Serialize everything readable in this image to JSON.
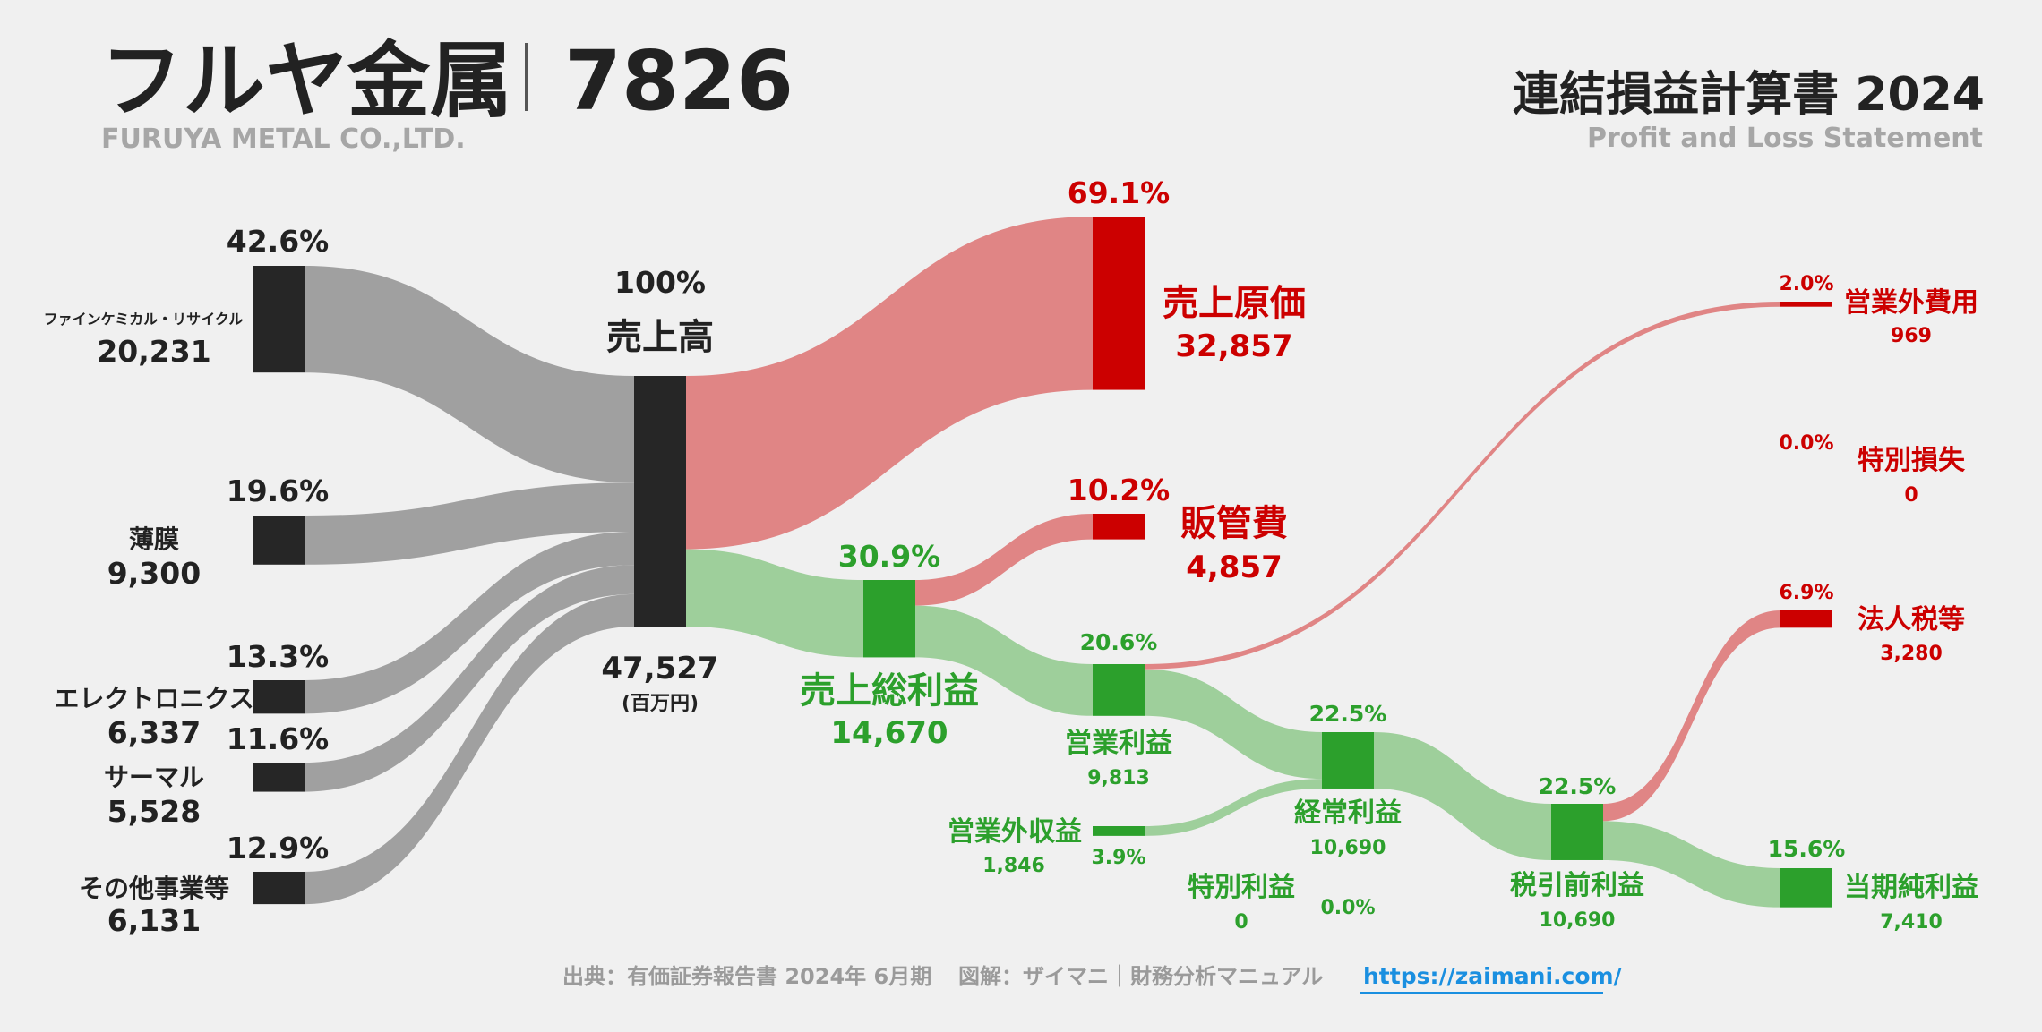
{
  "header": {
    "company": "フルヤ金属",
    "code": "7826",
    "company_en": "FURUYA METAL CO.,LTD.",
    "statement_title": "連結損益計算書 2024",
    "statement_en": "Profit and Loss Statement"
  },
  "colors": {
    "dark": "#262626",
    "gray_flow": "#a0a0a0",
    "red": "#cc0000",
    "red_flow": "#e08585",
    "green": "#2ca02c",
    "green_flow": "#9ecf9b",
    "text_dark": "#222222"
  },
  "chart_data": {
    "type": "sankey",
    "unit": "(百万円)",
    "revenue": {
      "label": "売上高",
      "pct": "100%",
      "value": 47527,
      "display": "47,527"
    },
    "segments": [
      {
        "name": "ファインケミカル・リサイクル",
        "value": 20231,
        "display": "20,231",
        "pct": "42.6%"
      },
      {
        "name": "薄膜",
        "value": 9300,
        "display": "9,300",
        "pct": "19.6%"
      },
      {
        "name": "エレクトロニクス",
        "value": 6337,
        "display": "6,337",
        "pct": "13.3%"
      },
      {
        "name": "サーマル",
        "value": 5528,
        "display": "5,528",
        "pct": "11.6%"
      },
      {
        "name": "その他事業等",
        "value": 6131,
        "display": "6,131",
        "pct": "12.9%"
      }
    ],
    "cost_of_sales": {
      "label": "売上原価",
      "value": 32857,
      "display": "32,857",
      "pct": "69.1%"
    },
    "gross_profit": {
      "label": "売上総利益",
      "value": 14670,
      "display": "14,670",
      "pct": "30.9%"
    },
    "sga": {
      "label": "販管費",
      "value": 4857,
      "display": "4,857",
      "pct": "10.2%"
    },
    "operating_income": {
      "label": "営業利益",
      "value": 9813,
      "display": "9,813",
      "pct": "20.6%"
    },
    "non_operating_expenses": {
      "label": "営業外費用",
      "value": 969,
      "display": "969",
      "pct": "2.0%"
    },
    "non_operating_income": {
      "label": "営業外収益",
      "value": 1846,
      "display": "1,846",
      "pct": "3.9%"
    },
    "ordinary_income": {
      "label": "経常利益",
      "value": 10690,
      "display": "10,690",
      "pct": "22.5%"
    },
    "extraordinary_losses": {
      "label": "特別損失",
      "value": 0,
      "display": "0",
      "pct": "0.0%"
    },
    "extraordinary_income": {
      "label": "特別利益",
      "value": 0,
      "display": "0",
      "pct": "0.0%"
    },
    "pretax_income": {
      "label": "税引前利益",
      "value": 10690,
      "display": "10,690",
      "pct": "22.5%"
    },
    "income_taxes": {
      "label": "法人税等",
      "value": 3280,
      "display": "3,280",
      "pct": "6.9%"
    },
    "net_income": {
      "label": "当期純利益",
      "value": 7410,
      "display": "7,410",
      "pct": "15.6%"
    }
  },
  "footer": {
    "source": "出典：有価証券報告書 2024年 6月期",
    "credit": "図解：ザイマニ｜財務分析マニュアル",
    "link": "https://zaimani.com/"
  }
}
